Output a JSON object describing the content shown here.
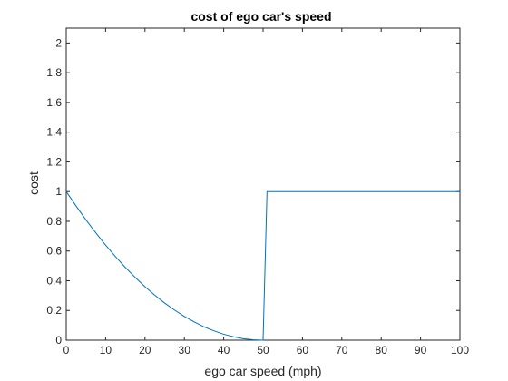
{
  "chart_data": {
    "type": "line",
    "title": "cost of ego car's speed",
    "xlabel": "ego car speed (mph)",
    "ylabel": "cost",
    "xlim": [
      0,
      100
    ],
    "ylim": [
      0,
      2.1
    ],
    "x_ticks": [
      0,
      10,
      20,
      30,
      40,
      50,
      60,
      70,
      80,
      90,
      100
    ],
    "x_tick_labels": [
      "0",
      "10",
      "20",
      "30",
      "40",
      "50",
      "60",
      "70",
      "80",
      "90",
      "100"
    ],
    "y_ticks": [
      0,
      0.2,
      0.4,
      0.6,
      0.8,
      1,
      1.2,
      1.4,
      1.6,
      1.8,
      2
    ],
    "y_tick_labels": [
      "0",
      "0.2",
      "0.4",
      "0.6",
      "0.8",
      "1",
      "1.2",
      "1.4",
      "1.6",
      "1.8",
      "2"
    ],
    "grid": false,
    "series": [
      {
        "color": "#0072BD",
        "x": [
          0,
          2.5,
          5,
          7.5,
          10,
          12.5,
          15,
          17.5,
          20,
          22.5,
          25,
          27.5,
          30,
          32.5,
          35,
          37.5,
          40,
          42.5,
          45,
          47.5,
          50,
          51,
          100
        ],
        "y": [
          1,
          0.903,
          0.81,
          0.723,
          0.64,
          0.563,
          0.49,
          0.423,
          0.36,
          0.303,
          0.25,
          0.203,
          0.16,
          0.123,
          0.09,
          0.063,
          0.04,
          0.023,
          0.01,
          0.003,
          0,
          1,
          1
        ]
      }
    ]
  }
}
